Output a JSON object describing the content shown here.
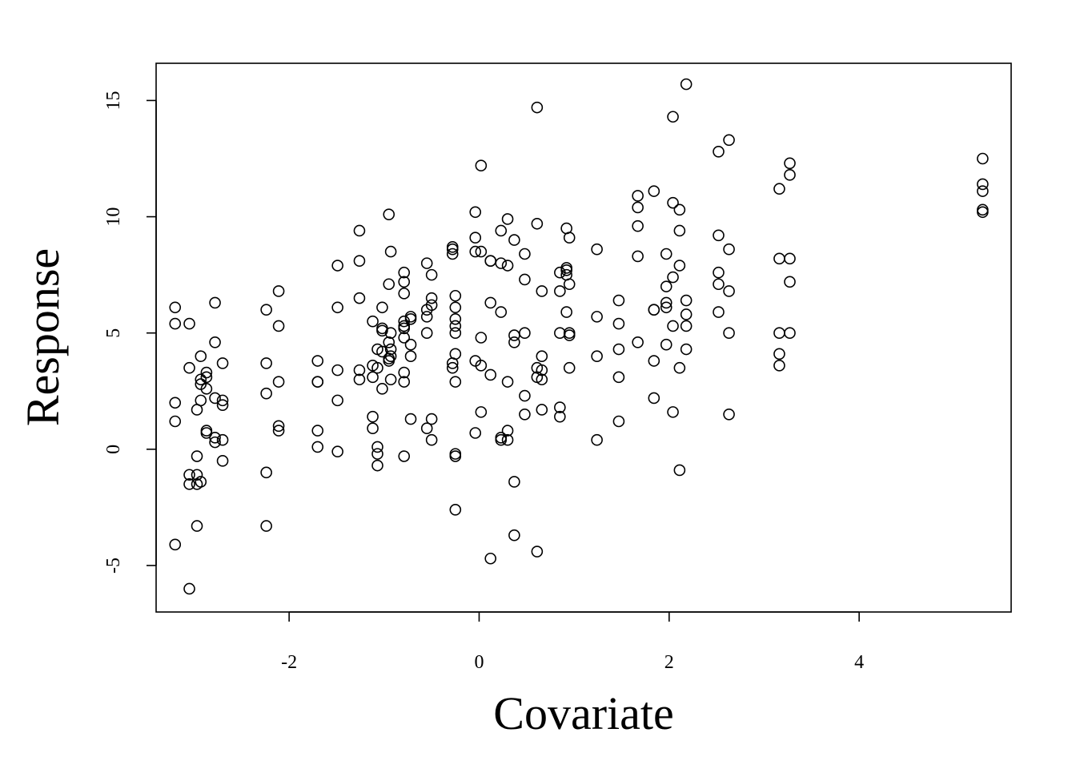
{
  "chart_data": {
    "type": "scatter",
    "title": "",
    "xlabel": "Covariate",
    "ylabel": "Response",
    "xlim": [
      -3.4,
      5.6
    ],
    "ylim": [
      -7,
      16.6
    ],
    "xticks": [
      -2,
      0,
      2,
      4
    ],
    "yticks": [
      -5,
      0,
      5,
      10,
      15
    ],
    "xtick_labels": [
      "-2",
      "0",
      "2",
      "4"
    ],
    "ytick_labels": [
      "-5",
      "0",
      "5",
      "10",
      "15"
    ],
    "grid": false,
    "marker": "open-circle",
    "points": [
      [
        -3.2,
        6.1
      ],
      [
        -3.2,
        5.4
      ],
      [
        -3.2,
        2.0
      ],
      [
        -3.2,
        1.2
      ],
      [
        -3.2,
        -4.1
      ],
      [
        -3.05,
        5.4
      ],
      [
        -3.05,
        3.5
      ],
      [
        -3.05,
        -1.1
      ],
      [
        -3.05,
        -1.5
      ],
      [
        -3.05,
        -6.0
      ],
      [
        -2.97,
        1.7
      ],
      [
        -2.97,
        -0.3
      ],
      [
        -2.97,
        -1.1
      ],
      [
        -2.97,
        -1.5
      ],
      [
        -2.97,
        -3.3
      ],
      [
        -2.93,
        4.0
      ],
      [
        -2.93,
        3.0
      ],
      [
        -2.93,
        2.8
      ],
      [
        -2.93,
        2.1
      ],
      [
        -2.93,
        -1.4
      ],
      [
        -2.87,
        3.3
      ],
      [
        -2.87,
        3.1
      ],
      [
        -2.87,
        2.6
      ],
      [
        -2.87,
        0.8
      ],
      [
        -2.87,
        0.7
      ],
      [
        -2.78,
        6.3
      ],
      [
        -2.78,
        4.6
      ],
      [
        -2.78,
        2.2
      ],
      [
        -2.78,
        0.5
      ],
      [
        -2.78,
        0.3
      ],
      [
        -2.7,
        3.7
      ],
      [
        -2.7,
        2.1
      ],
      [
        -2.7,
        1.9
      ],
      [
        -2.7,
        0.4
      ],
      [
        -2.7,
        -0.5
      ],
      [
        -2.24,
        6.0
      ],
      [
        -2.24,
        3.7
      ],
      [
        -2.24,
        2.4
      ],
      [
        -2.24,
        -1.0
      ],
      [
        -2.24,
        -3.3
      ],
      [
        -2.11,
        6.8
      ],
      [
        -2.11,
        5.3
      ],
      [
        -2.11,
        2.9
      ],
      [
        -2.11,
        1.0
      ],
      [
        -2.11,
        0.8
      ],
      [
        -1.7,
        3.8
      ],
      [
        -1.7,
        2.9
      ],
      [
        -1.7,
        2.9
      ],
      [
        -1.7,
        0.8
      ],
      [
        -1.7,
        0.1
      ],
      [
        -1.49,
        7.9
      ],
      [
        -1.49,
        6.1
      ],
      [
        -1.49,
        3.4
      ],
      [
        -1.49,
        2.1
      ],
      [
        -1.49,
        -0.1
      ],
      [
        -1.26,
        9.4
      ],
      [
        -1.26,
        8.1
      ],
      [
        -1.26,
        6.5
      ],
      [
        -1.26,
        3.4
      ],
      [
        -1.26,
        3.0
      ],
      [
        -1.12,
        5.5
      ],
      [
        -1.12,
        3.6
      ],
      [
        -1.12,
        3.1
      ],
      [
        -1.12,
        1.4
      ],
      [
        -1.12,
        0.9
      ],
      [
        -1.07,
        4.3
      ],
      [
        -1.07,
        3.5
      ],
      [
        -1.07,
        0.1
      ],
      [
        -1.07,
        -0.2
      ],
      [
        -1.07,
        -0.7
      ],
      [
        -1.02,
        6.1
      ],
      [
        -1.02,
        5.2
      ],
      [
        -1.02,
        5.1
      ],
      [
        -1.02,
        4.2
      ],
      [
        -1.02,
        2.6
      ],
      [
        -0.95,
        10.1
      ],
      [
        -0.95,
        7.1
      ],
      [
        -0.95,
        4.6
      ],
      [
        -0.95,
        3.9
      ],
      [
        -0.95,
        3.8
      ],
      [
        -0.93,
        8.5
      ],
      [
        -0.93,
        5.0
      ],
      [
        -0.93,
        4.3
      ],
      [
        -0.93,
        4.0
      ],
      [
        -0.93,
        3.0
      ],
      [
        -0.79,
        7.6
      ],
      [
        -0.79,
        7.2
      ],
      [
        -0.79,
        6.7
      ],
      [
        -0.79,
        5.5
      ],
      [
        -0.79,
        5.3
      ],
      [
        -0.79,
        5.2
      ],
      [
        -0.79,
        4.8
      ],
      [
        -0.79,
        3.3
      ],
      [
        -0.79,
        2.9
      ],
      [
        -0.79,
        -0.3
      ],
      [
        -0.72,
        5.7
      ],
      [
        -0.72,
        5.6
      ],
      [
        -0.72,
        4.5
      ],
      [
        -0.72,
        4.0
      ],
      [
        -0.72,
        1.3
      ],
      [
        -0.55,
        8.0
      ],
      [
        -0.55,
        6.0
      ],
      [
        -0.55,
        5.7
      ],
      [
        -0.55,
        5.0
      ],
      [
        -0.55,
        0.9
      ],
      [
        -0.5,
        7.5
      ],
      [
        -0.5,
        6.5
      ],
      [
        -0.5,
        6.2
      ],
      [
        -0.5,
        1.3
      ],
      [
        -0.5,
        0.4
      ],
      [
        -0.28,
        8.7
      ],
      [
        -0.28,
        8.6
      ],
      [
        -0.28,
        8.4
      ],
      [
        -0.28,
        3.7
      ],
      [
        -0.28,
        3.5
      ],
      [
        -0.25,
        6.6
      ],
      [
        -0.25,
        6.1
      ],
      [
        -0.25,
        5.6
      ],
      [
        -0.25,
        5.3
      ],
      [
        -0.25,
        5.0
      ],
      [
        -0.25,
        4.1
      ],
      [
        -0.25,
        2.9
      ],
      [
        -0.25,
        -0.2
      ],
      [
        -0.25,
        -0.3
      ],
      [
        -0.25,
        -2.6
      ],
      [
        -0.04,
        10.2
      ],
      [
        -0.04,
        9.1
      ],
      [
        -0.04,
        8.5
      ],
      [
        -0.04,
        3.8
      ],
      [
        -0.04,
        0.7
      ],
      [
        0.02,
        12.2
      ],
      [
        0.02,
        8.5
      ],
      [
        0.02,
        4.8
      ],
      [
        0.02,
        3.6
      ],
      [
        0.02,
        1.6
      ],
      [
        0.12,
        8.1
      ],
      [
        0.12,
        8.1
      ],
      [
        0.12,
        6.3
      ],
      [
        0.12,
        3.2
      ],
      [
        0.12,
        -4.7
      ],
      [
        0.23,
        9.4
      ],
      [
        0.23,
        8.0
      ],
      [
        0.23,
        5.9
      ],
      [
        0.23,
        0.5
      ],
      [
        0.23,
        0.4
      ],
      [
        0.3,
        9.9
      ],
      [
        0.3,
        7.9
      ],
      [
        0.3,
        2.9
      ],
      [
        0.3,
        0.8
      ],
      [
        0.3,
        0.4
      ],
      [
        0.37,
        9.0
      ],
      [
        0.37,
        4.9
      ],
      [
        0.37,
        4.6
      ],
      [
        0.37,
        -1.4
      ],
      [
        0.37,
        -3.7
      ],
      [
        0.48,
        8.4
      ],
      [
        0.48,
        7.3
      ],
      [
        0.48,
        5.0
      ],
      [
        0.48,
        2.3
      ],
      [
        0.48,
        1.5
      ],
      [
        0.61,
        14.7
      ],
      [
        0.61,
        9.7
      ],
      [
        0.61,
        3.5
      ],
      [
        0.61,
        3.1
      ],
      [
        0.61,
        -4.4
      ],
      [
        0.66,
        6.8
      ],
      [
        0.66,
        4.0
      ],
      [
        0.66,
        3.4
      ],
      [
        0.66,
        3.0
      ],
      [
        0.66,
        1.7
      ],
      [
        0.85,
        7.6
      ],
      [
        0.85,
        6.8
      ],
      [
        0.85,
        5.0
      ],
      [
        0.85,
        1.8
      ],
      [
        0.85,
        1.4
      ],
      [
        0.92,
        9.5
      ],
      [
        0.92,
        7.8
      ],
      [
        0.92,
        7.7
      ],
      [
        0.92,
        7.5
      ],
      [
        0.92,
        5.9
      ],
      [
        0.95,
        9.1
      ],
      [
        0.95,
        7.1
      ],
      [
        0.95,
        5.0
      ],
      [
        0.95,
        4.9
      ],
      [
        0.95,
        3.5
      ],
      [
        1.24,
        8.6
      ],
      [
        1.24,
        5.7
      ],
      [
        1.24,
        4.0
      ],
      [
        1.24,
        0.4
      ],
      [
        1.47,
        6.4
      ],
      [
        1.47,
        5.4
      ],
      [
        1.47,
        4.3
      ],
      [
        1.47,
        3.1
      ],
      [
        1.47,
        1.2
      ],
      [
        1.67,
        10.9
      ],
      [
        1.67,
        10.4
      ],
      [
        1.67,
        9.6
      ],
      [
        1.67,
        8.3
      ],
      [
        1.67,
        4.6
      ],
      [
        1.84,
        11.1
      ],
      [
        1.84,
        6.0
      ],
      [
        1.84,
        6.0
      ],
      [
        1.84,
        3.8
      ],
      [
        1.84,
        2.2
      ],
      [
        1.97,
        8.4
      ],
      [
        1.97,
        7.0
      ],
      [
        1.97,
        6.3
      ],
      [
        1.97,
        6.1
      ],
      [
        1.97,
        4.5
      ],
      [
        2.04,
        14.3
      ],
      [
        2.04,
        10.6
      ],
      [
        2.04,
        7.4
      ],
      [
        2.04,
        5.3
      ],
      [
        2.04,
        1.6
      ],
      [
        2.11,
        10.3
      ],
      [
        2.11,
        9.4
      ],
      [
        2.11,
        7.9
      ],
      [
        2.11,
        3.5
      ],
      [
        2.11,
        -0.9
      ],
      [
        2.18,
        15.7
      ],
      [
        2.18,
        6.4
      ],
      [
        2.18,
        5.8
      ],
      [
        2.18,
        5.3
      ],
      [
        2.18,
        4.3
      ],
      [
        2.52,
        12.8
      ],
      [
        2.52,
        9.2
      ],
      [
        2.52,
        7.6
      ],
      [
        2.52,
        7.1
      ],
      [
        2.52,
        5.9
      ],
      [
        2.63,
        13.3
      ],
      [
        2.63,
        8.6
      ],
      [
        2.63,
        6.8
      ],
      [
        2.63,
        5.0
      ],
      [
        2.63,
        1.5
      ],
      [
        3.16,
        11.2
      ],
      [
        3.16,
        8.2
      ],
      [
        3.16,
        5.0
      ],
      [
        3.16,
        4.1
      ],
      [
        3.16,
        3.6
      ],
      [
        3.27,
        12.3
      ],
      [
        3.27,
        11.8
      ],
      [
        3.27,
        8.2
      ],
      [
        3.27,
        7.2
      ],
      [
        3.27,
        5.0
      ],
      [
        5.3,
        12.5
      ],
      [
        5.3,
        11.4
      ],
      [
        5.3,
        11.1
      ],
      [
        5.3,
        10.3
      ],
      [
        5.3,
        10.2
      ]
    ]
  }
}
